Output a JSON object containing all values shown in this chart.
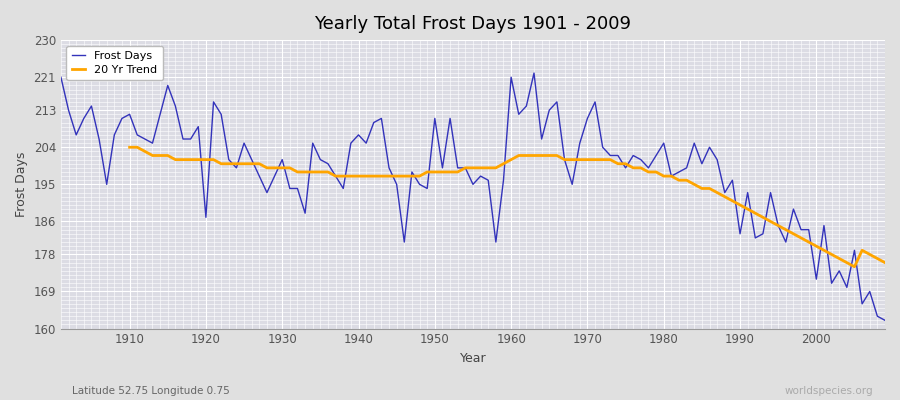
{
  "title": "Yearly Total Frost Days 1901 - 2009",
  "xlabel": "Year",
  "ylabel": "Frost Days",
  "subtitle": "Latitude 52.75 Longitude 0.75",
  "watermark": "worldspecies.org",
  "ylim": [
    160,
    230
  ],
  "yticks": [
    160,
    169,
    178,
    186,
    195,
    204,
    213,
    221,
    230
  ],
  "line_color": "#3333bb",
  "trend_color": "#FFA500",
  "fig_bg_color": "#e0e0e0",
  "plot_bg_color": "#dcdce4",
  "years": [
    1901,
    1902,
    1903,
    1904,
    1905,
    1906,
    1907,
    1908,
    1909,
    1910,
    1911,
    1912,
    1913,
    1914,
    1915,
    1916,
    1917,
    1918,
    1919,
    1920,
    1921,
    1922,
    1923,
    1924,
    1925,
    1926,
    1927,
    1928,
    1929,
    1930,
    1931,
    1932,
    1933,
    1934,
    1935,
    1936,
    1937,
    1938,
    1939,
    1940,
    1941,
    1942,
    1943,
    1944,
    1945,
    1946,
    1947,
    1948,
    1949,
    1950,
    1951,
    1952,
    1953,
    1954,
    1955,
    1956,
    1957,
    1958,
    1959,
    1960,
    1961,
    1962,
    1963,
    1964,
    1965,
    1966,
    1967,
    1968,
    1969,
    1970,
    1971,
    1972,
    1973,
    1974,
    1975,
    1976,
    1977,
    1978,
    1979,
    1980,
    1981,
    1982,
    1983,
    1984,
    1985,
    1986,
    1987,
    1988,
    1989,
    1990,
    1991,
    1992,
    1993,
    1994,
    1995,
    1996,
    1997,
    1998,
    1999,
    2000,
    2001,
    2002,
    2003,
    2004,
    2005,
    2006,
    2007,
    2008,
    2009
  ],
  "frost_days": [
    221,
    213,
    207,
    211,
    214,
    206,
    195,
    207,
    211,
    212,
    207,
    206,
    205,
    212,
    219,
    214,
    206,
    206,
    209,
    187,
    215,
    212,
    201,
    199,
    205,
    201,
    197,
    193,
    197,
    201,
    194,
    194,
    188,
    205,
    201,
    200,
    197,
    194,
    205,
    207,
    205,
    210,
    211,
    199,
    195,
    181,
    198,
    195,
    194,
    211,
    199,
    211,
    199,
    199,
    195,
    197,
    196,
    181,
    196,
    221,
    212,
    214,
    222,
    206,
    213,
    215,
    201,
    195,
    205,
    211,
    215,
    204,
    202,
    202,
    199,
    202,
    201,
    199,
    202,
    205,
    197,
    198,
    199,
    205,
    200,
    204,
    201,
    193,
    196,
    183,
    193,
    182,
    183,
    193,
    185,
    181,
    189,
    184,
    184,
    172,
    185,
    171,
    174,
    170,
    179,
    166,
    169,
    163,
    162
  ],
  "trend_years": [
    1910,
    1911,
    1912,
    1913,
    1914,
    1915,
    1916,
    1917,
    1918,
    1919,
    1920,
    1921,
    1922,
    1923,
    1924,
    1925,
    1926,
    1927,
    1928,
    1929,
    1930,
    1931,
    1932,
    1933,
    1934,
    1935,
    1936,
    1937,
    1938,
    1939,
    1940,
    1941,
    1942,
    1943,
    1944,
    1945,
    1946,
    1947,
    1948,
    1949,
    1950,
    1951,
    1952,
    1953,
    1954,
    1955,
    1956,
    1957,
    1958,
    1959,
    1960,
    1961,
    1962,
    1963,
    1964,
    1965,
    1966,
    1967,
    1968,
    1969,
    1970,
    1971,
    1972,
    1973,
    1974,
    1975,
    1976,
    1977,
    1978,
    1979,
    1980,
    1981,
    1982,
    1983,
    1984,
    1985,
    1986,
    1987,
    1988,
    1989,
    1990,
    1991,
    1992,
    1993,
    1994,
    1995,
    1996,
    1997,
    1998,
    1999,
    2000,
    2001,
    2002,
    2003,
    2004,
    2005,
    2006,
    2007,
    2008,
    2009
  ],
  "trend_values": [
    204,
    204,
    203,
    202,
    202,
    202,
    201,
    201,
    201,
    201,
    201,
    201,
    200,
    200,
    200,
    200,
    200,
    200,
    199,
    199,
    199,
    199,
    198,
    198,
    198,
    198,
    198,
    197,
    197,
    197,
    197,
    197,
    197,
    197,
    197,
    197,
    197,
    197,
    197,
    198,
    198,
    198,
    198,
    198,
    199,
    199,
    199,
    199,
    199,
    200,
    201,
    202,
    202,
    202,
    202,
    202,
    202,
    201,
    201,
    201,
    201,
    201,
    201,
    201,
    200,
    200,
    199,
    199,
    198,
    198,
    197,
    197,
    196,
    196,
    195,
    194,
    194,
    193,
    192,
    191,
    190,
    189,
    188,
    187,
    186,
    185,
    184,
    183,
    182,
    181,
    180,
    179,
    178,
    177,
    176,
    175,
    179,
    178,
    177,
    176
  ]
}
